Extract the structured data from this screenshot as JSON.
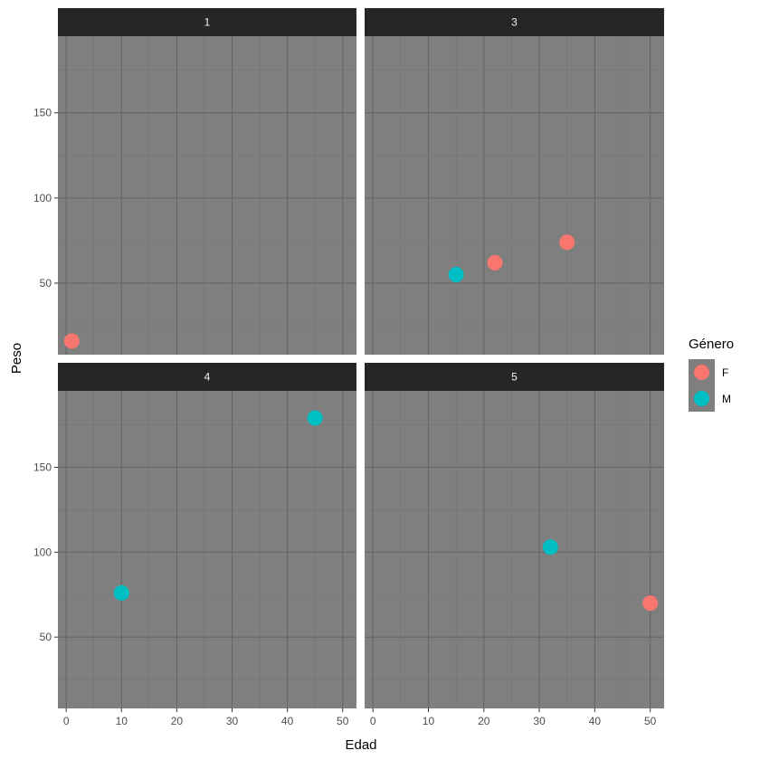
{
  "chart_data": {
    "type": "scatter",
    "xlabel": "Edad",
    "ylabel": "Peso",
    "xlim": [
      -1.5,
      52.5
    ],
    "ylim": [
      8,
      195
    ],
    "x_ticks": [
      0,
      10,
      20,
      30,
      40,
      50
    ],
    "y_ticks": [
      50,
      100,
      150
    ],
    "grid": true,
    "legend": {
      "title": "Género",
      "placement": "right",
      "entries": [
        {
          "label": "F",
          "color": "#F8766D"
        },
        {
          "label": "M",
          "color": "#00BFC4"
        }
      ]
    },
    "facets": [
      {
        "label": "1",
        "points": [
          {
            "x": 1,
            "y": 16,
            "group": "F"
          }
        ]
      },
      {
        "label": "3",
        "points": [
          {
            "x": 15,
            "y": 55,
            "group": "M"
          },
          {
            "x": 22,
            "y": 62,
            "group": "F"
          },
          {
            "x": 35,
            "y": 74,
            "group": "F"
          }
        ]
      },
      {
        "label": "4",
        "points": [
          {
            "x": 10,
            "y": 76,
            "group": "M"
          },
          {
            "x": 45,
            "y": 179,
            "group": "M"
          }
        ]
      },
      {
        "label": "5",
        "points": [
          {
            "x": 32,
            "y": 103,
            "group": "M"
          },
          {
            "x": 50,
            "y": 70,
            "group": "F"
          }
        ]
      }
    ]
  }
}
